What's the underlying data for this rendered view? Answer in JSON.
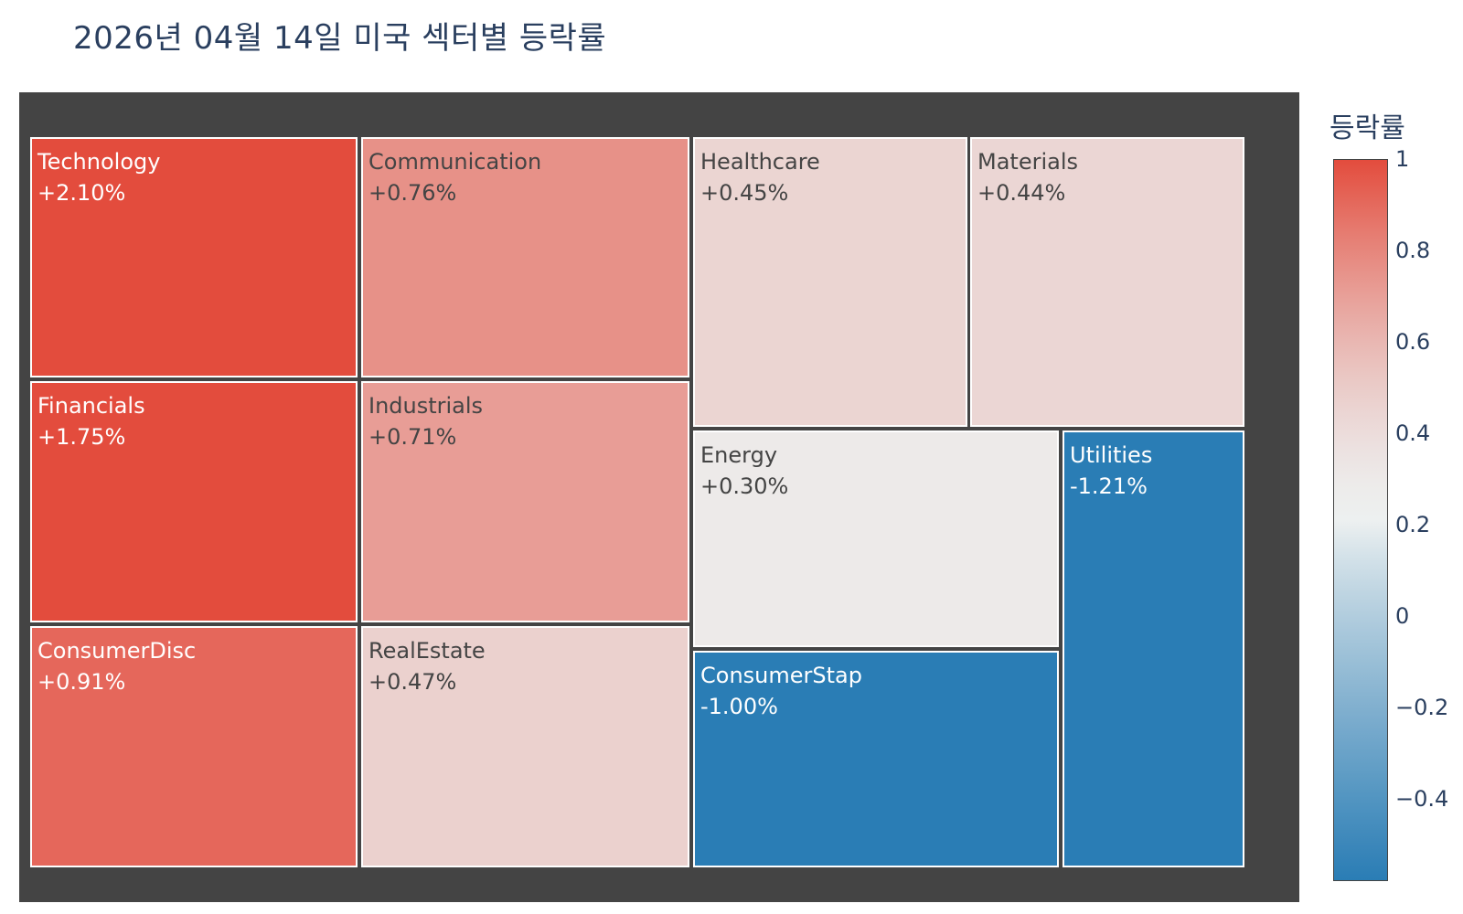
{
  "title": "2026년 04월 14일 미국 섹터별 등락률",
  "colorbar": {
    "title": "등락률",
    "colors": {
      "positive": "#e34c3d",
      "neutral": "#edf0f0",
      "negative": "#2a7db5"
    },
    "range": [
      -0.58,
      1.0
    ],
    "ticks": [
      {
        "value": 1.0,
        "label": "1"
      },
      {
        "value": 0.8,
        "label": "0.8"
      },
      {
        "value": 0.6,
        "label": "0.6"
      },
      {
        "value": 0.4,
        "label": "0.4"
      },
      {
        "value": 0.2,
        "label": "0.2"
      },
      {
        "value": 0.0,
        "label": "0"
      },
      {
        "value": -0.2,
        "label": "−0.2"
      },
      {
        "value": -0.4,
        "label": "−0.4"
      }
    ]
  },
  "chart_data": {
    "type": "treemap",
    "title": "2026년 04월 14일 미국 섹터별 등락률",
    "color_title": "등락률",
    "value_format": "signed percent",
    "sectors": [
      {
        "name": "Technology",
        "label": "+2.10%",
        "change": 2.1
      },
      {
        "name": "Communication",
        "label": "+0.76%",
        "change": 0.76
      },
      {
        "name": "Healthcare",
        "label": "+0.45%",
        "change": 0.45
      },
      {
        "name": "Materials",
        "label": "+0.44%",
        "change": 0.44
      },
      {
        "name": "Financials",
        "label": "+1.75%",
        "change": 1.75
      },
      {
        "name": "Industrials",
        "label": "+0.71%",
        "change": 0.71
      },
      {
        "name": "Energy",
        "label": "+0.30%",
        "change": 0.3
      },
      {
        "name": "Utilities",
        "label": "-1.21%",
        "change": -1.21
      },
      {
        "name": "ConsumerDisc",
        "label": "+0.91%",
        "change": 0.91
      },
      {
        "name": "RealEstate",
        "label": "+0.47%",
        "change": 0.47
      },
      {
        "name": "ConsumerStap",
        "label": "-1.00%",
        "change": -1.0
      }
    ]
  }
}
